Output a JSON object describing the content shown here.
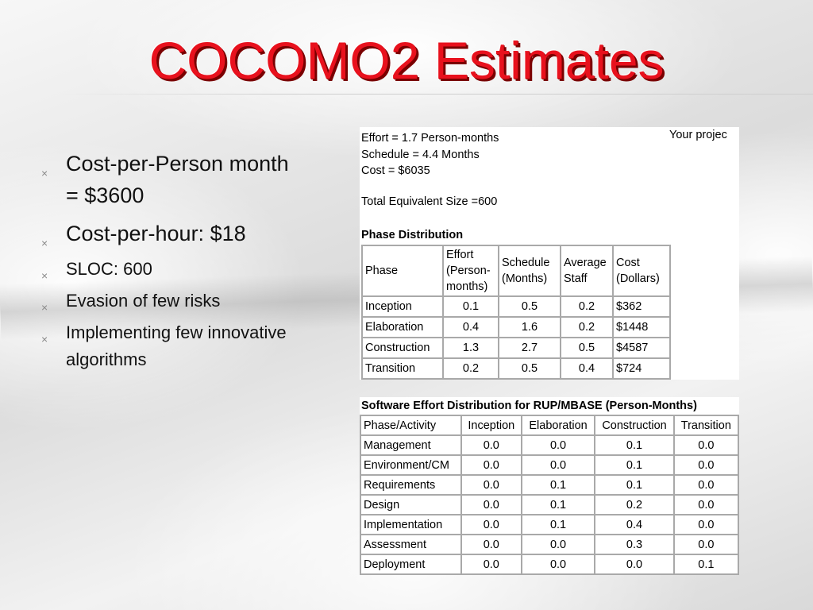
{
  "slide": {
    "title": "COCOMO2 Estimates",
    "bullets": [
      {
        "text": "Cost-per-Person month = $3600",
        "size": "large"
      },
      {
        "text": "Cost-per-hour: $18",
        "size": "large"
      },
      {
        "text": "SLOC: 600",
        "size": "small"
      },
      {
        "text": "Evasion of few risks",
        "size": "small"
      },
      {
        "text": "Implementing few innovative algorithms",
        "size": "small"
      }
    ],
    "bullet_marker": "×"
  },
  "estimate": {
    "effort": "Effort = 1.7 Person-months",
    "schedule": "Schedule = 4.4 Months",
    "cost": "Cost = $6035",
    "total_size": "Total Equivalent Size =600",
    "your_project": "Your projec"
  },
  "phase_distribution": {
    "heading": "Phase Distribution",
    "columns": [
      "Phase",
      "Effort (Person-months)",
      "Schedule (Months)",
      "Average Staff",
      "Cost (Dollars)"
    ],
    "rows": [
      [
        "Inception",
        "0.1",
        "0.5",
        "0.2",
        "$362"
      ],
      [
        "Elaboration",
        "0.4",
        "1.6",
        "0.2",
        "$1448"
      ],
      [
        "Construction",
        "1.3",
        "2.7",
        "0.5",
        "$4587"
      ],
      [
        "Transition",
        "0.2",
        "0.5",
        "0.4",
        "$724"
      ]
    ]
  },
  "software_effort": {
    "heading": "Software Effort Distribution for RUP/MBASE (Person-Months)",
    "columns": [
      "Phase/Activity",
      "Inception",
      "Elaboration",
      "Construction",
      "Transition"
    ],
    "rows": [
      [
        "Management",
        "0.0",
        "0.0",
        "0.1",
        "0.0"
      ],
      [
        "Environment/CM",
        "0.0",
        "0.0",
        "0.1",
        "0.0"
      ],
      [
        "Requirements",
        "0.0",
        "0.1",
        "0.1",
        "0.0"
      ],
      [
        "Design",
        "0.0",
        "0.1",
        "0.2",
        "0.0"
      ],
      [
        "Implementation",
        "0.0",
        "0.1",
        "0.4",
        "0.0"
      ],
      [
        "Assessment",
        "0.0",
        "0.0",
        "0.3",
        "0.0"
      ],
      [
        "Deployment",
        "0.0",
        "0.0",
        "0.0",
        "0.1"
      ]
    ]
  }
}
